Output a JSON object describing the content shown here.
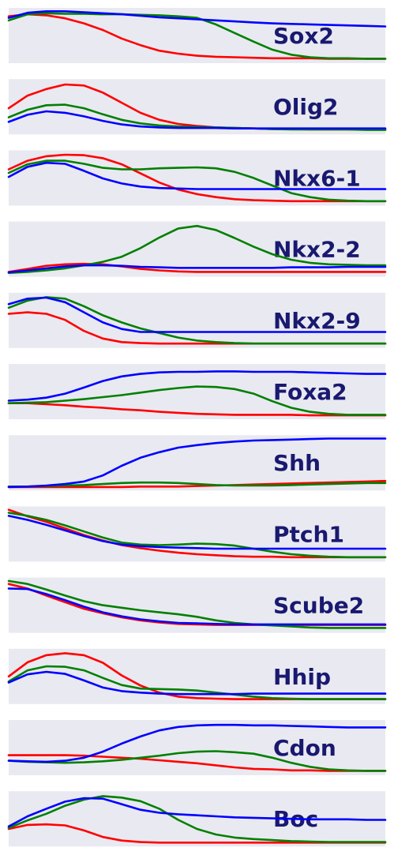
{
  "chart_data": {
    "type": "line",
    "x_range": [
      0,
      1
    ],
    "y_range": [
      0,
      1
    ],
    "grid": false,
    "legend": "none",
    "colors": {
      "series_1": "#ff0000",
      "series_2": "#008000",
      "series_3": "#0000ff",
      "label": "#191970",
      "panel": "#e9e9f1"
    },
    "x": [
      0,
      0.05,
      0.1,
      0.15,
      0.2,
      0.25,
      0.3,
      0.35,
      0.4,
      0.45,
      0.5,
      0.55,
      0.6,
      0.65,
      0.7,
      0.75,
      0.8,
      0.85,
      0.9,
      0.95,
      1.0
    ],
    "panels": [
      {
        "gene": "Sox2",
        "series": [
          {
            "color": "#ff0000",
            "values": [
              0.88,
              0.92,
              0.9,
              0.84,
              0.74,
              0.61,
              0.44,
              0.31,
              0.2,
              0.14,
              0.1,
              0.08,
              0.07,
              0.06,
              0.05,
              0.05,
              0.05,
              0.04,
              0.04,
              0.04,
              0.04
            ]
          },
          {
            "color": "#008000",
            "values": [
              0.8,
              0.92,
              0.94,
              0.93,
              0.93,
              0.92,
              0.92,
              0.91,
              0.9,
              0.88,
              0.85,
              0.72,
              0.55,
              0.38,
              0.22,
              0.12,
              0.07,
              0.05,
              0.05,
              0.04,
              0.04
            ]
          },
          {
            "color": "#0000ff",
            "values": [
              0.85,
              0.95,
              0.98,
              0.98,
              0.96,
              0.94,
              0.92,
              0.89,
              0.86,
              0.84,
              0.82,
              0.8,
              0.78,
              0.76,
              0.74,
              0.73,
              0.72,
              0.71,
              0.7,
              0.69,
              0.68
            ]
          }
        ]
      },
      {
        "gene": "Olig2",
        "series": [
          {
            "color": "#ff0000",
            "values": [
              0.47,
              0.72,
              0.85,
              0.94,
              0.92,
              0.78,
              0.58,
              0.38,
              0.24,
              0.16,
              0.12,
              0.09,
              0.08,
              0.07,
              0.06,
              0.06,
              0.05,
              0.05,
              0.05,
              0.05,
              0.05
            ]
          },
          {
            "color": "#008000",
            "values": [
              0.29,
              0.44,
              0.53,
              0.54,
              0.47,
              0.35,
              0.24,
              0.17,
              0.13,
              0.11,
              0.1,
              0.09,
              0.08,
              0.07,
              0.06,
              0.05,
              0.05,
              0.05,
              0.05,
              0.04,
              0.04
            ]
          },
          {
            "color": "#0000ff",
            "values": [
              0.2,
              0.34,
              0.41,
              0.38,
              0.31,
              0.22,
              0.15,
              0.11,
              0.09,
              0.08,
              0.08,
              0.08,
              0.07,
              0.07,
              0.07,
              0.07,
              0.07,
              0.07,
              0.07,
              0.07,
              0.07
            ]
          }
        ]
      },
      {
        "gene": "Nkx6-1",
        "series": [
          {
            "color": "#ff0000",
            "values": [
              0.67,
              0.84,
              0.93,
              0.96,
              0.95,
              0.89,
              0.77,
              0.59,
              0.41,
              0.27,
              0.18,
              0.12,
              0.08,
              0.06,
              0.05,
              0.04,
              0.04,
              0.04,
              0.04,
              0.04,
              0.04
            ]
          },
          {
            "color": "#008000",
            "values": [
              0.6,
              0.77,
              0.84,
              0.84,
              0.78,
              0.7,
              0.67,
              0.67,
              0.69,
              0.7,
              0.71,
              0.69,
              0.62,
              0.5,
              0.35,
              0.2,
              0.12,
              0.07,
              0.05,
              0.04,
              0.04
            ]
          },
          {
            "color": "#0000ff",
            "values": [
              0.52,
              0.72,
              0.8,
              0.78,
              0.64,
              0.49,
              0.39,
              0.33,
              0.3,
              0.29,
              0.28,
              0.28,
              0.28,
              0.28,
              0.28,
              0.28,
              0.28,
              0.28,
              0.28,
              0.28,
              0.28
            ]
          }
        ]
      },
      {
        "gene": "Nkx2-2",
        "series": [
          {
            "color": "#ff0000",
            "values": [
              0.05,
              0.11,
              0.17,
              0.2,
              0.21,
              0.2,
              0.16,
              0.11,
              0.08,
              0.06,
              0.05,
              0.05,
              0.05,
              0.05,
              0.05,
              0.05,
              0.05,
              0.05,
              0.05,
              0.05,
              0.05
            ]
          },
          {
            "color": "#008000",
            "values": [
              0.03,
              0.05,
              0.08,
              0.12,
              0.18,
              0.25,
              0.35,
              0.52,
              0.73,
              0.91,
              0.96,
              0.88,
              0.72,
              0.55,
              0.4,
              0.29,
              0.23,
              0.2,
              0.19,
              0.18,
              0.18
            ]
          },
          {
            "color": "#0000ff",
            "values": [
              0.04,
              0.08,
              0.12,
              0.16,
              0.18,
              0.18,
              0.17,
              0.15,
              0.14,
              0.13,
              0.13,
              0.13,
              0.13,
              0.13,
              0.13,
              0.14,
              0.14,
              0.14,
              0.15,
              0.15,
              0.15
            ]
          }
        ]
      },
      {
        "gene": "Nkx2-9",
        "series": [
          {
            "color": "#ff0000",
            "values": [
              0.63,
              0.66,
              0.63,
              0.51,
              0.29,
              0.14,
              0.07,
              0.05,
              0.04,
              0.04,
              0.04,
              0.04,
              0.04,
              0.04,
              0.04,
              0.04,
              0.04,
              0.04,
              0.04,
              0.04,
              0.04
            ]
          },
          {
            "color": "#008000",
            "values": [
              0.75,
              0.89,
              0.96,
              0.93,
              0.78,
              0.6,
              0.46,
              0.34,
              0.25,
              0.16,
              0.1,
              0.07,
              0.05,
              0.04,
              0.04,
              0.04,
              0.04,
              0.04,
              0.04,
              0.04,
              0.04
            ]
          },
          {
            "color": "#0000ff",
            "values": [
              0.82,
              0.93,
              0.95,
              0.86,
              0.66,
              0.46,
              0.33,
              0.27,
              0.27,
              0.27,
              0.27,
              0.27,
              0.27,
              0.27,
              0.27,
              0.27,
              0.27,
              0.27,
              0.27,
              0.27,
              0.27
            ]
          }
        ]
      },
      {
        "gene": "Foxa2",
        "series": [
          {
            "color": "#ff0000",
            "values": [
              0.27,
              0.27,
              0.25,
              0.23,
              0.2,
              0.18,
              0.15,
              0.13,
              0.1,
              0.08,
              0.06,
              0.05,
              0.04,
              0.04,
              0.04,
              0.04,
              0.03,
              0.03,
              0.03,
              0.03,
              0.03
            ]
          },
          {
            "color": "#008000",
            "values": [
              0.27,
              0.28,
              0.29,
              0.32,
              0.35,
              0.39,
              0.43,
              0.48,
              0.53,
              0.57,
              0.6,
              0.59,
              0.55,
              0.46,
              0.31,
              0.18,
              0.1,
              0.06,
              0.04,
              0.04,
              0.04
            ]
          },
          {
            "color": "#0000ff",
            "values": [
              0.32,
              0.34,
              0.38,
              0.46,
              0.58,
              0.71,
              0.8,
              0.85,
              0.88,
              0.89,
              0.89,
              0.9,
              0.9,
              0.89,
              0.89,
              0.89,
              0.88,
              0.87,
              0.86,
              0.85,
              0.85
            ]
          }
        ]
      },
      {
        "gene": "Shh",
        "series": [
          {
            "color": "#ff0000",
            "values": [
              0.02,
              0.02,
              0.02,
              0.02,
              0.02,
              0.02,
              0.02,
              0.03,
              0.03,
              0.03,
              0.04,
              0.05,
              0.06,
              0.07,
              0.08,
              0.09,
              0.1,
              0.11,
              0.12,
              0.13,
              0.14
            ]
          },
          {
            "color": "#008000",
            "values": [
              0.03,
              0.03,
              0.04,
              0.05,
              0.06,
              0.08,
              0.1,
              0.11,
              0.11,
              0.1,
              0.08,
              0.06,
              0.05,
              0.05,
              0.05,
              0.06,
              0.07,
              0.08,
              0.09,
              0.1,
              0.1
            ]
          },
          {
            "color": "#0000ff",
            "values": [
              0.02,
              0.03,
              0.05,
              0.08,
              0.13,
              0.25,
              0.44,
              0.6,
              0.71,
              0.8,
              0.85,
              0.89,
              0.92,
              0.94,
              0.95,
              0.96,
              0.97,
              0.98,
              0.98,
              0.98,
              0.98
            ]
          }
        ]
      },
      {
        "gene": "Ptch1",
        "series": [
          {
            "color": "#ff0000",
            "values": [
              0.98,
              0.85,
              0.74,
              0.61,
              0.48,
              0.37,
              0.28,
              0.22,
              0.17,
              0.13,
              0.1,
              0.08,
              0.06,
              0.05,
              0.05,
              0.04,
              0.04,
              0.04,
              0.04,
              0.04,
              0.04
            ]
          },
          {
            "color": "#008000",
            "values": [
              0.92,
              0.86,
              0.78,
              0.67,
              0.55,
              0.43,
              0.33,
              0.29,
              0.28,
              0.29,
              0.31,
              0.3,
              0.27,
              0.21,
              0.15,
              0.1,
              0.07,
              0.05,
              0.04,
              0.04,
              0.04
            ]
          },
          {
            "color": "#0000ff",
            "values": [
              0.86,
              0.78,
              0.68,
              0.57,
              0.46,
              0.36,
              0.29,
              0.26,
              0.24,
              0.23,
              0.22,
              0.21,
              0.21,
              0.21,
              0.21,
              0.21,
              0.21,
              0.21,
              0.21,
              0.21,
              0.21
            ]
          }
        ]
      },
      {
        "gene": "Scube2",
        "series": [
          {
            "color": "#ff0000",
            "values": [
              0.92,
              0.83,
              0.69,
              0.56,
              0.43,
              0.34,
              0.26,
              0.2,
              0.16,
              0.13,
              0.12,
              0.11,
              0.11,
              0.11,
              0.11,
              0.11,
              0.11,
              0.11,
              0.11,
              0.11,
              0.11
            ]
          },
          {
            "color": "#008000",
            "values": [
              0.98,
              0.92,
              0.81,
              0.69,
              0.58,
              0.5,
              0.45,
              0.4,
              0.36,
              0.32,
              0.27,
              0.2,
              0.15,
              0.12,
              0.1,
              0.08,
              0.06,
              0.05,
              0.05,
              0.05,
              0.05
            ]
          },
          {
            "color": "#0000ff",
            "values": [
              0.83,
              0.82,
              0.72,
              0.6,
              0.47,
              0.36,
              0.28,
              0.22,
              0.18,
              0.15,
              0.14,
              0.13,
              0.12,
              0.12,
              0.12,
              0.12,
              0.12,
              0.12,
              0.12,
              0.12,
              0.12
            ]
          }
        ]
      },
      {
        "gene": "Hhip",
        "series": [
          {
            "color": "#ff0000",
            "values": [
              0.5,
              0.78,
              0.92,
              0.96,
              0.92,
              0.77,
              0.52,
              0.32,
              0.18,
              0.1,
              0.07,
              0.06,
              0.05,
              0.05,
              0.05,
              0.05,
              0.05,
              0.05,
              0.05,
              0.05,
              0.05
            ]
          },
          {
            "color": "#008000",
            "values": [
              0.4,
              0.62,
              0.7,
              0.69,
              0.62,
              0.47,
              0.33,
              0.26,
              0.25,
              0.24,
              0.22,
              0.18,
              0.14,
              0.1,
              0.07,
              0.06,
              0.05,
              0.05,
              0.05,
              0.05,
              0.05
            ]
          },
          {
            "color": "#0000ff",
            "values": [
              0.38,
              0.54,
              0.59,
              0.55,
              0.42,
              0.28,
              0.21,
              0.18,
              0.16,
              0.15,
              0.15,
              0.15,
              0.15,
              0.16,
              0.16,
              0.16,
              0.16,
              0.16,
              0.16,
              0.16,
              0.16
            ]
          }
        ]
      },
      {
        "gene": "Cdon",
        "series": [
          {
            "color": "#ff0000",
            "values": [
              0.35,
              0.35,
              0.35,
              0.35,
              0.34,
              0.32,
              0.3,
              0.28,
              0.25,
              0.22,
              0.19,
              0.15,
              0.11,
              0.08,
              0.07,
              0.05,
              0.05,
              0.04,
              0.04,
              0.04,
              0.04
            ]
          },
          {
            "color": "#008000",
            "values": [
              0.24,
              0.22,
              0.21,
              0.2,
              0.21,
              0.23,
              0.26,
              0.3,
              0.34,
              0.39,
              0.42,
              0.43,
              0.41,
              0.38,
              0.3,
              0.2,
              0.12,
              0.07,
              0.05,
              0.04,
              0.04
            ]
          },
          {
            "color": "#0000ff",
            "values": [
              0.24,
              0.23,
              0.22,
              0.24,
              0.3,
              0.42,
              0.58,
              0.72,
              0.84,
              0.91,
              0.94,
              0.95,
              0.95,
              0.94,
              0.94,
              0.93,
              0.92,
              0.91,
              0.9,
              0.9,
              0.9
            ]
          }
        ]
      },
      {
        "gene": "Boc",
        "series": [
          {
            "color": "#ff0000",
            "values": [
              0.3,
              0.38,
              0.39,
              0.37,
              0.27,
              0.14,
              0.07,
              0.04,
              0.03,
              0.03,
              0.03,
              0.03,
              0.03,
              0.03,
              0.03,
              0.03,
              0.03,
              0.03,
              0.03,
              0.03,
              0.03
            ]
          },
          {
            "color": "#008000",
            "values": [
              0.32,
              0.47,
              0.6,
              0.76,
              0.88,
              0.95,
              0.92,
              0.85,
              0.7,
              0.48,
              0.3,
              0.19,
              0.13,
              0.1,
              0.08,
              0.06,
              0.05,
              0.04,
              0.04,
              0.04,
              0.04
            ]
          },
          {
            "color": "#0000ff",
            "values": [
              0.35,
              0.55,
              0.7,
              0.84,
              0.91,
              0.9,
              0.79,
              0.68,
              0.62,
              0.59,
              0.57,
              0.55,
              0.53,
              0.52,
              0.51,
              0.5,
              0.49,
              0.49,
              0.49,
              0.48,
              0.48
            ]
          }
        ]
      }
    ]
  }
}
